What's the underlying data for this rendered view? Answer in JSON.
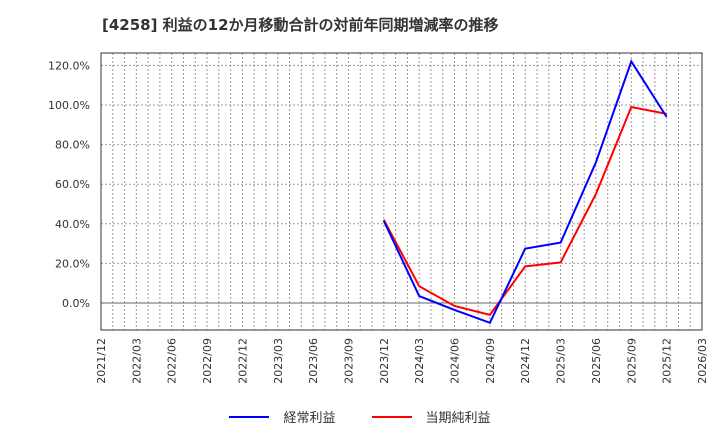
{
  "title": "[4258]  利益の12か月移動合計の対前年同期増減率の推移",
  "legend": [
    {
      "label": "経常利益",
      "color": "#0000ff"
    },
    {
      "label": "当期純利益",
      "color": "#ff0000"
    }
  ],
  "chart_data": {
    "type": "line",
    "title": "[4258]  利益の12か月移動合計の対前年同期増減率の推移",
    "xlabel": "",
    "ylabel": "",
    "x_ticks": [
      "2021/12",
      "2022/03",
      "2022/06",
      "2022/09",
      "2022/12",
      "2023/03",
      "2023/06",
      "2023/09",
      "2023/12",
      "2024/03",
      "2024/06",
      "2024/09",
      "2024/12",
      "2025/03",
      "2025/06",
      "2025/09",
      "2025/12",
      "2026/03"
    ],
    "y_ticks": [
      "0.0%",
      "20.0%",
      "40.0%",
      "60.0%",
      "80.0%",
      "100.0%",
      "120.0%"
    ],
    "ylim": [
      -14,
      126
    ],
    "grid": true,
    "legend_position": "bottom",
    "x": [
      "2023/12",
      "2024/03",
      "2024/06",
      "2024/09",
      "2024/12",
      "2025/03",
      "2025/06",
      "2025/09",
      "2025/12"
    ],
    "series": [
      {
        "name": "経常利益",
        "color": "#0000ff",
        "values": [
          41.5,
          3.5,
          -3.5,
          -10.0,
          27.5,
          30.5,
          71.0,
          122.0,
          94.0
        ]
      },
      {
        "name": "当期純利益",
        "color": "#ff0000",
        "values": [
          42.0,
          8.5,
          -1.5,
          -6.0,
          18.5,
          20.5,
          55.0,
          99.0,
          95.5
        ]
      }
    ]
  }
}
